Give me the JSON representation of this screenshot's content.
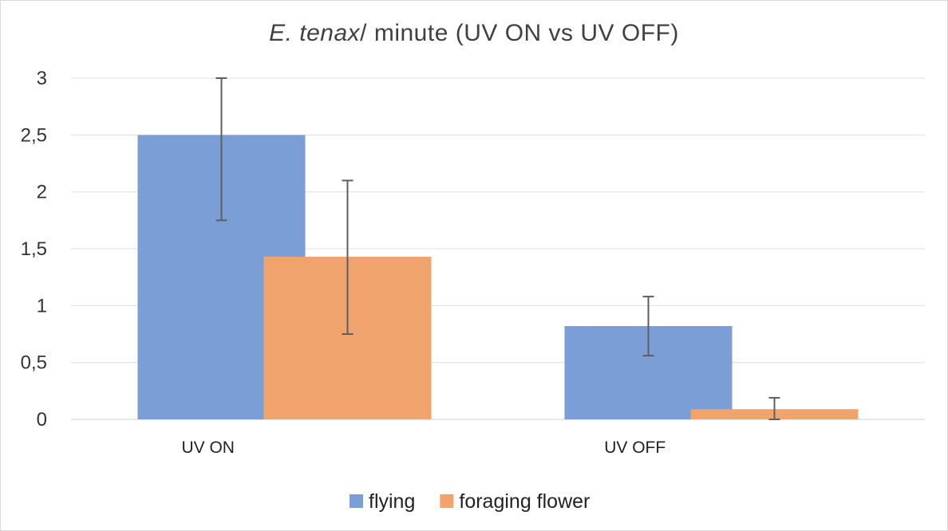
{
  "chart_data": {
    "type": "bar",
    "title_italic": "E. tenax",
    "title_rest": "/ minute (UV ON vs UV OFF)",
    "categories": [
      "UV ON",
      "UV OFF"
    ],
    "series": [
      {
        "name": "flying",
        "color": "#7B9ED6",
        "values": [
          2.5,
          0.82
        ],
        "error_low": [
          1.75,
          0.56
        ],
        "error_high": [
          3.0,
          1.08
        ]
      },
      {
        "name": "foraging flower",
        "color": "#F0A36D",
        "values": [
          1.43,
          0.09
        ],
        "error_low": [
          0.75,
          0.0
        ],
        "error_high": [
          2.1,
          0.19
        ]
      }
    ],
    "yticks": [
      "0",
      "0,5",
      "1",
      "1,5",
      "2",
      "2,5",
      "3"
    ],
    "ylim": [
      0,
      3
    ],
    "grid": true,
    "legend_position": "bottom"
  }
}
